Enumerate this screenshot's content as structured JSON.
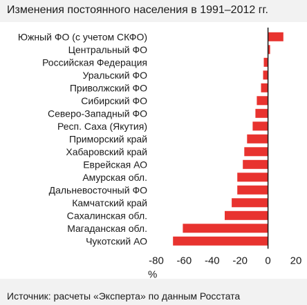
{
  "title": "Изменения постоянного населения в 1991–2012 гг.",
  "source": "Источник: расчеты «Эксперта» по данным Росстата",
  "unit": "%",
  "colors": {
    "bar": "#e8332f",
    "axis": "#1a1a1a",
    "background": "#f2f2f2"
  },
  "chart_data": {
    "type": "bar",
    "orientation": "horizontal",
    "categories": [
      "Южный ФО (с учетом СКФО)",
      "Центральный ФО",
      "Российская Федерация",
      "Уральский ФО",
      "Приволжский ФО",
      "Сибирский ФО",
      "Северо-Западный ФО",
      "Респ. Саха (Якутия)",
      "Приморский край",
      "Хабаровский край",
      "Еврейская АО",
      "Амурская обл.",
      "Дальневосточный ФО",
      "Камчатский край",
      "Сахалинская обл.",
      "Магаданская обл.",
      "Чукотский АО"
    ],
    "values": [
      11,
      1.5,
      -3,
      -3.5,
      -5,
      -8,
      -9,
      -11,
      -15,
      -17,
      -18,
      -22,
      -22,
      -26,
      -31,
      -61,
      -68
    ],
    "xlim": [
      -80,
      20
    ],
    "xticks": [
      -80,
      -60,
      -40,
      -20,
      0,
      20
    ],
    "xlabel": "%",
    "grid": false
  }
}
